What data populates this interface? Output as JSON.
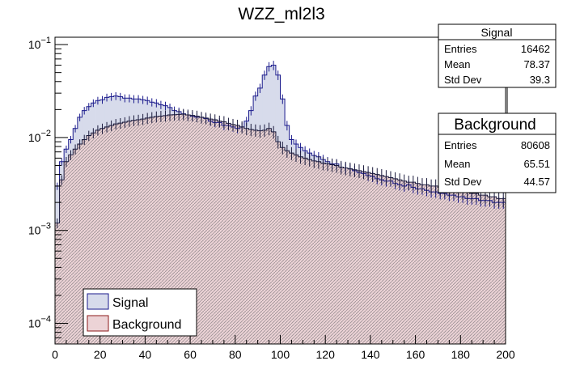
{
  "chart_data": {
    "type": "histogram",
    "title": "WZZ_ml2l3",
    "xlabel": "",
    "ylabel": "",
    "xlim": [
      0,
      200
    ],
    "ylim": [
      6e-05,
      0.12
    ],
    "y_scale": "log",
    "bin_width": 2,
    "x_ticks": [
      "0",
      "20",
      "40",
      "60",
      "80",
      "100",
      "120",
      "140",
      "160",
      "180",
      "200"
    ],
    "y_ticks": [
      {
        "base": "10",
        "exp": "−4",
        "value": 0.0001
      },
      {
        "base": "10",
        "exp": "−3",
        "value": 0.001
      },
      {
        "base": "10",
        "exp": "−2",
        "value": 0.01
      },
      {
        "base": "10",
        "exp": "−1",
        "value": 0.1
      }
    ],
    "legend": {
      "placement": "bottom-left",
      "entries": [
        {
          "label": "Signal",
          "fill": "#d7dbeb",
          "edge": "#1a1a8c"
        },
        {
          "label": "Background",
          "fill": "#ecd3d6",
          "edge": "#8c1a1a"
        }
      ]
    },
    "stats_boxes": [
      {
        "title": "Signal",
        "rows": [
          {
            "label": "Entries",
            "value": "16462"
          },
          {
            "label": "Mean",
            "value": "78.37"
          },
          {
            "label": "Std Dev",
            "value": "39.3"
          }
        ]
      },
      {
        "title": "Background",
        "rows": [
          {
            "label": "Entries",
            "value": "80608"
          },
          {
            "label": "Mean",
            "value": "65.51"
          },
          {
            "label": "Std Dev",
            "value": "44.57"
          }
        ]
      }
    ],
    "series": [
      {
        "name": "Signal",
        "color": "#1a1a8c",
        "fill": "#d7dbeb",
        "x_bin_centers": [
          1,
          3,
          5,
          7,
          9,
          11,
          13,
          15,
          17,
          19,
          21,
          23,
          25,
          27,
          29,
          31,
          33,
          35,
          37,
          39,
          41,
          43,
          45,
          47,
          49,
          51,
          53,
          55,
          57,
          59,
          61,
          63,
          65,
          67,
          69,
          71,
          73,
          75,
          77,
          79,
          81,
          83,
          85,
          87,
          89,
          91,
          93,
          95,
          97,
          99,
          101,
          103,
          105,
          107,
          109,
          111,
          113,
          115,
          117,
          119,
          121,
          123,
          125,
          127,
          129,
          131,
          133,
          135,
          137,
          139,
          141,
          143,
          145,
          147,
          149,
          151,
          153,
          155,
          157,
          159,
          161,
          163,
          165,
          167,
          169,
          171,
          173,
          175,
          177,
          179,
          181,
          183,
          185,
          187,
          189,
          191,
          193,
          195,
          197,
          199
        ],
        "values": [
          0.003,
          0.0055,
          0.0075,
          0.0095,
          0.0125,
          0.0165,
          0.0195,
          0.0215,
          0.0235,
          0.025,
          0.0255,
          0.027,
          0.0275,
          0.028,
          0.0275,
          0.0265,
          0.0265,
          0.026,
          0.026,
          0.0255,
          0.025,
          0.024,
          0.0235,
          0.0225,
          0.022,
          0.021,
          0.0195,
          0.019,
          0.018,
          0.0175,
          0.017,
          0.0165,
          0.0165,
          0.016,
          0.015,
          0.0145,
          0.0145,
          0.0135,
          0.0135,
          0.013,
          0.0125,
          0.013,
          0.015,
          0.0195,
          0.028,
          0.034,
          0.047,
          0.058,
          0.06,
          0.047,
          0.026,
          0.0135,
          0.0095,
          0.0085,
          0.0078,
          0.0072,
          0.0068,
          0.0064,
          0.0062,
          0.0058,
          0.0055,
          0.0052,
          0.0052,
          0.0048,
          0.0047,
          0.0046,
          0.0044,
          0.0042,
          0.0041,
          0.0039,
          0.0038,
          0.0036,
          0.0035,
          0.0034,
          0.0034,
          0.0032,
          0.0031,
          0.003,
          0.0031,
          0.0029,
          0.0028,
          0.0028,
          0.0027,
          0.0026,
          0.0026,
          0.0025,
          0.0025,
          0.0024,
          0.0024,
          0.0023,
          0.0023,
          0.0022,
          0.0022,
          0.0022,
          0.0021,
          0.0021,
          0.0021,
          0.002,
          0.002,
          0.002
        ]
      },
      {
        "name": "Background",
        "color": "#8c1a1a",
        "fill": "#ecd3d6",
        "x_bin_centers": [
          1,
          3,
          5,
          7,
          9,
          11,
          13,
          15,
          17,
          19,
          21,
          23,
          25,
          27,
          29,
          31,
          33,
          35,
          37,
          39,
          41,
          43,
          45,
          47,
          49,
          51,
          53,
          55,
          57,
          59,
          61,
          63,
          65,
          67,
          69,
          71,
          73,
          75,
          77,
          79,
          81,
          83,
          85,
          87,
          89,
          91,
          93,
          95,
          97,
          99,
          101,
          103,
          105,
          107,
          109,
          111,
          113,
          115,
          117,
          119,
          121,
          123,
          125,
          127,
          129,
          131,
          133,
          135,
          137,
          139,
          141,
          143,
          145,
          147,
          149,
          151,
          153,
          155,
          157,
          159,
          161,
          163,
          165,
          167,
          169,
          171,
          173,
          175,
          177,
          179,
          181,
          183,
          185,
          187,
          189,
          191,
          193,
          195,
          197,
          199
        ],
        "values": [
          0.0012,
          0.0035,
          0.0055,
          0.0065,
          0.0075,
          0.0085,
          0.0095,
          0.0105,
          0.0112,
          0.012,
          0.0125,
          0.013,
          0.0135,
          0.014,
          0.0143,
          0.0146,
          0.015,
          0.0153,
          0.0155,
          0.0158,
          0.0162,
          0.0165,
          0.0168,
          0.017,
          0.0172,
          0.0175,
          0.0176,
          0.0177,
          0.0178,
          0.0175,
          0.0173,
          0.017,
          0.0165,
          0.0162,
          0.0158,
          0.0155,
          0.015,
          0.0148,
          0.0142,
          0.0138,
          0.0135,
          0.013,
          0.0125,
          0.0122,
          0.012,
          0.0118,
          0.012,
          0.0125,
          0.0115,
          0.009,
          0.0078,
          0.0072,
          0.0068,
          0.0065,
          0.0062,
          0.006,
          0.0058,
          0.0056,
          0.0055,
          0.0053,
          0.0052,
          0.0051,
          0.005,
          0.0048,
          0.0047,
          0.0046,
          0.0045,
          0.0044,
          0.0043,
          0.0042,
          0.0041,
          0.004,
          0.0039,
          0.0038,
          0.0037,
          0.0036,
          0.0035,
          0.0034,
          0.0033,
          0.0033,
          0.0032,
          0.0031,
          0.0031,
          0.003,
          0.003,
          0.0029,
          0.0028,
          0.0028,
          0.0027,
          0.0027,
          0.0026,
          0.0026,
          0.0025,
          0.0025,
          0.0024,
          0.0024,
          0.0023,
          0.0023,
          0.0022,
          0.0022
        ]
      }
    ]
  }
}
